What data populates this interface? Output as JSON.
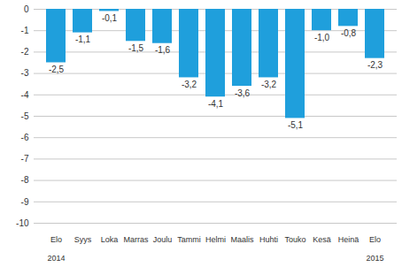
{
  "chart_data": {
    "type": "bar",
    "categories": [
      "Elo\n2014",
      "Syys",
      "Loka",
      "Marras",
      "Joulu",
      "Tammi",
      "Helmi",
      "Maalis",
      "Huhti",
      "Touko",
      "Kesä",
      "Heinä",
      "Elo\n2015"
    ],
    "values": [
      -2.5,
      -1.1,
      -0.1,
      -1.5,
      -1.6,
      -3.2,
      -4.1,
      -3.6,
      -3.2,
      -5.1,
      -1.0,
      -0.8,
      -2.3
    ],
    "value_labels": [
      "-2,5",
      "-1,1",
      "-0,1",
      "-1,5",
      "-1,6",
      "-3,2",
      "-4,1",
      "-3,6",
      "-3,2",
      "-5,1",
      "-1,0",
      "-0,8",
      "-2,3"
    ],
    "color": "#1f9fdc",
    "ylim": [
      -10,
      0
    ],
    "yticks": [
      -10,
      -9,
      -8,
      -7,
      -6,
      -5,
      -4,
      -3,
      -2,
      -1,
      0
    ],
    "grid": true,
    "data_labels": true
  }
}
